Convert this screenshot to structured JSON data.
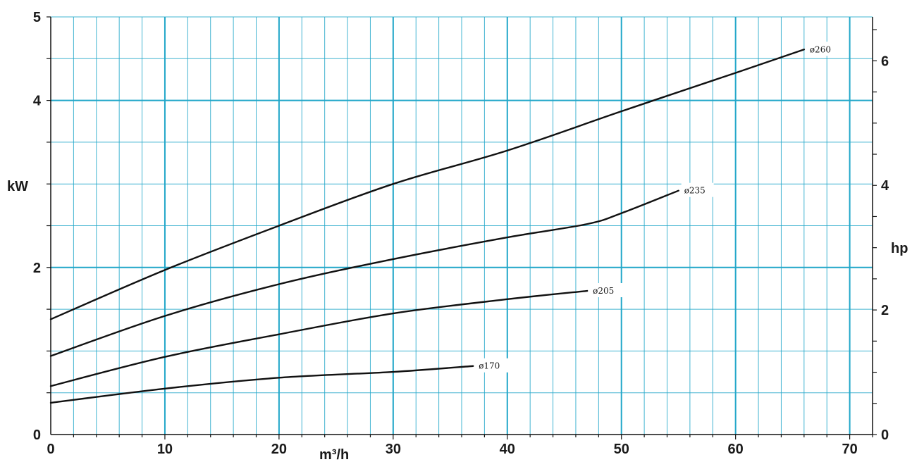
{
  "chart_data": {
    "type": "line",
    "title": "",
    "xlabel": "m³/h",
    "ylabel": "kW",
    "y2label": "hp",
    "xlim": [
      0,
      72
    ],
    "ylim": [
      0,
      5
    ],
    "y2lim": [
      0,
      6.705
    ],
    "x_ticks": [
      0,
      10,
      20,
      30,
      40,
      50,
      60,
      70
    ],
    "x_tick_labels": [
      "0",
      "10",
      "20",
      "30",
      "40",
      "50",
      "60",
      "70"
    ],
    "y_ticks": [
      0,
      2,
      4,
      5
    ],
    "y_tick_labels": [
      "0",
      "2",
      "4",
      "5"
    ],
    "y2_ticks": [
      0,
      2,
      4,
      6
    ],
    "y2_tick_labels": [
      "0",
      "2",
      "4",
      "6"
    ],
    "grid": true,
    "colors": {
      "grid": "#22a7c9",
      "curve": "#111111"
    },
    "series": [
      {
        "name": "ø260",
        "x": [
          0,
          10,
          20,
          30,
          40,
          50,
          60,
          66
        ],
        "y": [
          1.38,
          1.97,
          2.5,
          3.0,
          3.4,
          3.87,
          4.33,
          4.61
        ]
      },
      {
        "name": "ø235",
        "x": [
          0,
          10,
          20,
          30,
          40,
          47,
          50,
          55
        ],
        "y": [
          0.94,
          1.42,
          1.8,
          2.1,
          2.36,
          2.52,
          2.65,
          2.92
        ]
      },
      {
        "name": "ø205",
        "x": [
          0,
          10,
          20,
          30,
          40,
          47
        ],
        "y": [
          0.58,
          0.93,
          1.2,
          1.45,
          1.62,
          1.72
        ]
      },
      {
        "name": "ø170",
        "x": [
          0,
          10,
          20,
          30,
          37
        ],
        "y": [
          0.38,
          0.55,
          0.68,
          0.75,
          0.82
        ]
      }
    ]
  }
}
